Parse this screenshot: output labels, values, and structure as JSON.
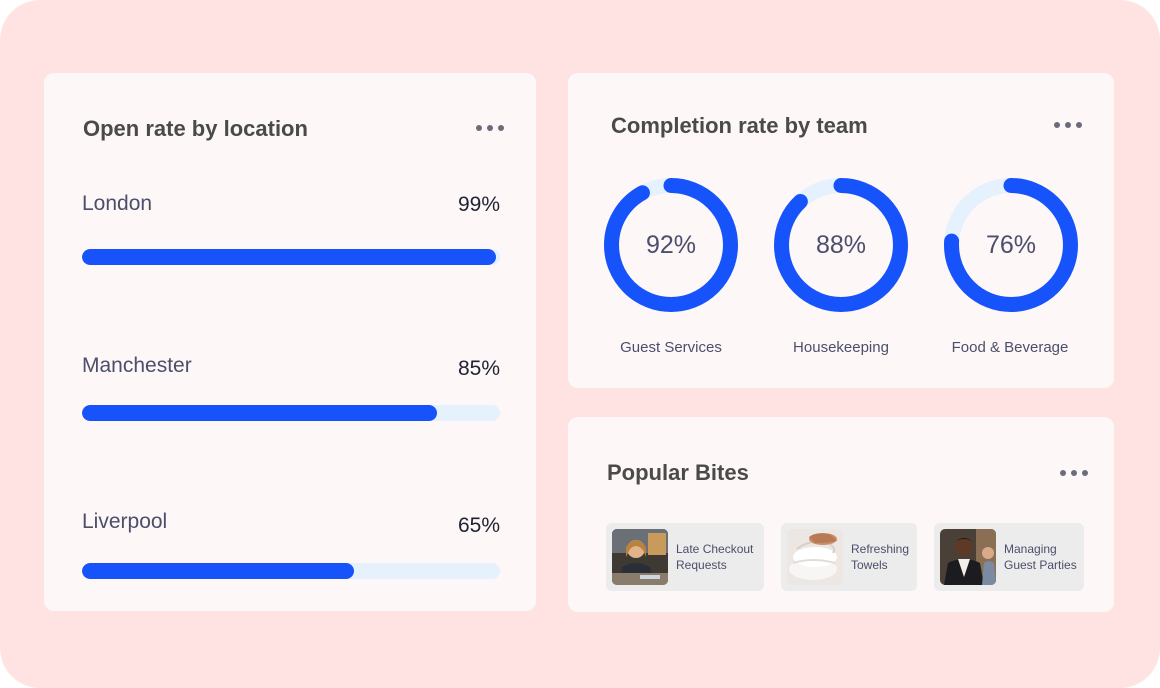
{
  "open_rate": {
    "title": "Open rate by location",
    "locations": [
      {
        "name": "London",
        "percent_label": "99%",
        "value": 99
      },
      {
        "name": "Manchester",
        "percent_label": "85%",
        "value": 85
      },
      {
        "name": "Liverpool",
        "percent_label": "65%",
        "value": 65
      }
    ]
  },
  "completion": {
    "title": "Completion rate by team",
    "teams": [
      {
        "name": "Guest Services",
        "percent_label": "92%",
        "value": 92
      },
      {
        "name": "Housekeeping",
        "percent_label": "88%",
        "value": 88
      },
      {
        "name": "Food & Beverage",
        "percent_label": "76%",
        "value": 76
      }
    ]
  },
  "bites": {
    "title": "Popular Bites",
    "items": [
      {
        "title": "Late Checkout\nRequests",
        "thumb_icon": "receptionist-photo"
      },
      {
        "title": "Refreshing\nTowels",
        "thumb_icon": "towels-photo"
      },
      {
        "title": "Managing\nGuest Parties",
        "thumb_icon": "waiter-photo"
      }
    ]
  },
  "colors": {
    "accent": "#1753fb",
    "track": "#e5f1fd",
    "background": "#ffe3e3",
    "card": "#fdf7f7"
  }
}
